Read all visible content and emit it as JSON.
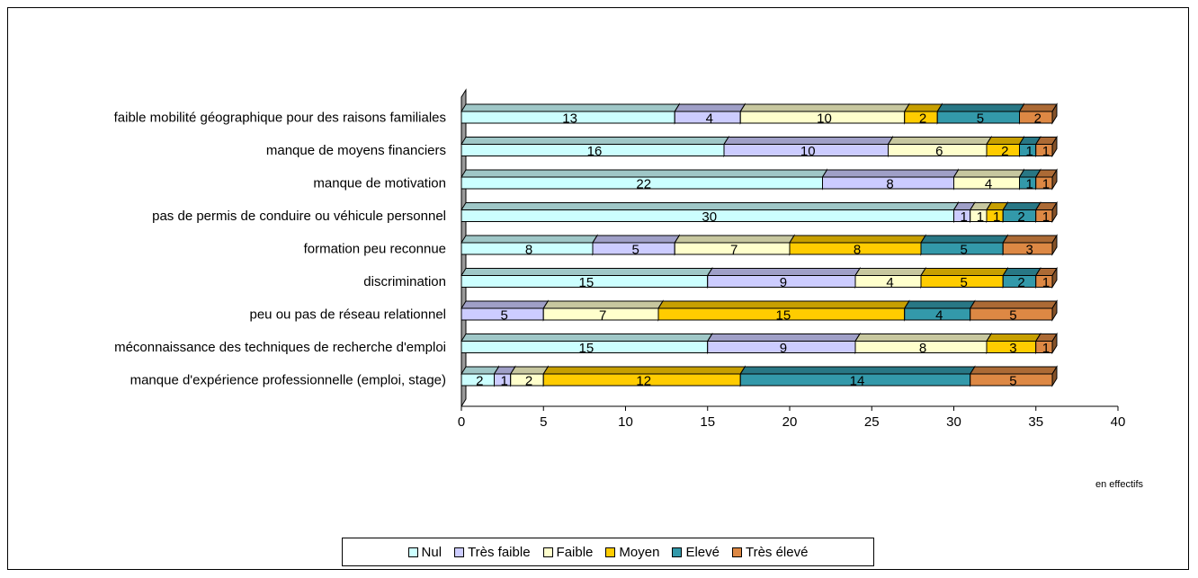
{
  "chart_data": {
    "type": "bar",
    "orientation": "horizontal",
    "stacked": true,
    "three_d": true,
    "title": "",
    "xlabel": "",
    "ylabel": "",
    "unit_note": "en effectifs",
    "xlim": [
      0,
      40
    ],
    "x_ticks": [
      "0",
      "5",
      "10",
      "15",
      "20",
      "25",
      "30",
      "35",
      "40"
    ],
    "grid": false,
    "legend_position": "bottom",
    "categories": [
      "faible mobilité géographique pour des raisons familiales",
      "manque de moyens financiers",
      "manque de motivation",
      "pas de permis de conduire ou véhicule personnel",
      "formation peu reconnue",
      "discrimination",
      "peu ou pas de réseau relationnel",
      "méconnaissance des techniques de recherche d'emploi",
      "manque d'expérience professionnelle (emploi, stage)"
    ],
    "series": [
      {
        "name": "Nul",
        "color": "#CCFFFF",
        "values": [
          13,
          16,
          22,
          30,
          8,
          15,
          0,
          15,
          2
        ]
      },
      {
        "name": "Très faible",
        "color": "#CCCCFF",
        "values": [
          4,
          10,
          8,
          1,
          5,
          9,
          5,
          9,
          1
        ]
      },
      {
        "name": "Faible",
        "color": "#FFFFCC",
        "values": [
          10,
          6,
          4,
          1,
          7,
          4,
          7,
          8,
          2
        ]
      },
      {
        "name": "Moyen",
        "color": "#FFCC00",
        "values": [
          2,
          2,
          0,
          1,
          8,
          5,
          15,
          3,
          12
        ]
      },
      {
        "name": "Elevé",
        "color": "#3399AA",
        "values": [
          5,
          1,
          1,
          2,
          5,
          2,
          4,
          0,
          14
        ]
      },
      {
        "name": "Très élevé",
        "color": "#DD8844",
        "values": [
          2,
          1,
          1,
          1,
          3,
          1,
          5,
          1,
          5
        ]
      }
    ]
  }
}
